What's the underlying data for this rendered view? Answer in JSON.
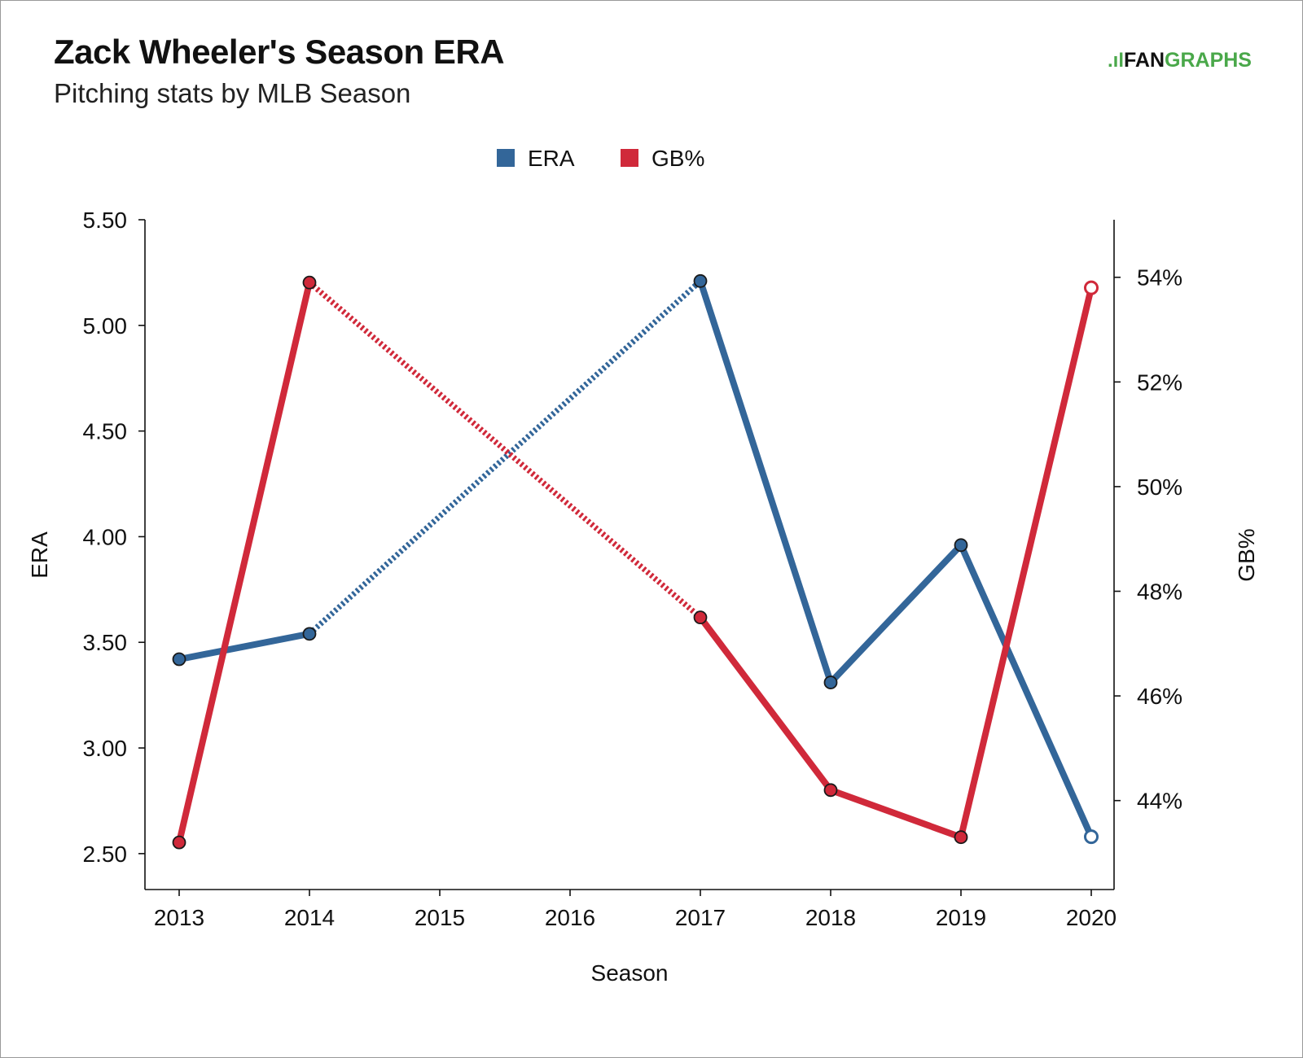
{
  "chart_title": "Zack Wheeler's Season ERA",
  "chart_subtitle": "Pitching stats by MLB Season",
  "brand": {
    "mark": ".ıl",
    "part1": "FAN",
    "part2": "GRAPHS",
    "color": "#4aa84a"
  },
  "colors": {
    "era": "#336699",
    "gb": "#d0293a"
  },
  "chart_data": {
    "type": "line",
    "title": "Zack Wheeler's Season ERA",
    "subtitle": "Pitching stats by MLB Season",
    "xlabel": "Season",
    "ylabel": "ERA",
    "y2label": "GB%",
    "x": [
      "2013",
      "2014",
      "2015",
      "2016",
      "2017",
      "2018",
      "2019",
      "2020"
    ],
    "ylim": [
      2.33,
      5.5
    ],
    "y2lim": [
      42.3,
      55.1
    ],
    "yticks": [
      "2.50",
      "3.00",
      "3.50",
      "4.00",
      "4.50",
      "5.00",
      "5.50"
    ],
    "y2ticks": [
      "44%",
      "46%",
      "48%",
      "50%",
      "52%",
      "54%"
    ],
    "legend_position": "top-center",
    "grid": false,
    "series": [
      {
        "name": "ERA",
        "axis": "left",
        "color": "#336699",
        "values": [
          3.42,
          3.54,
          null,
          null,
          5.21,
          3.31,
          3.96,
          2.58
        ],
        "gap": "dotted",
        "last_point_open": true
      },
      {
        "name": "GB%",
        "axis": "right",
        "color": "#d0293a",
        "values": [
          43.2,
          53.9,
          null,
          null,
          47.5,
          44.2,
          43.3,
          53.8
        ],
        "gap": "dotted",
        "last_point_open": true
      }
    ]
  }
}
